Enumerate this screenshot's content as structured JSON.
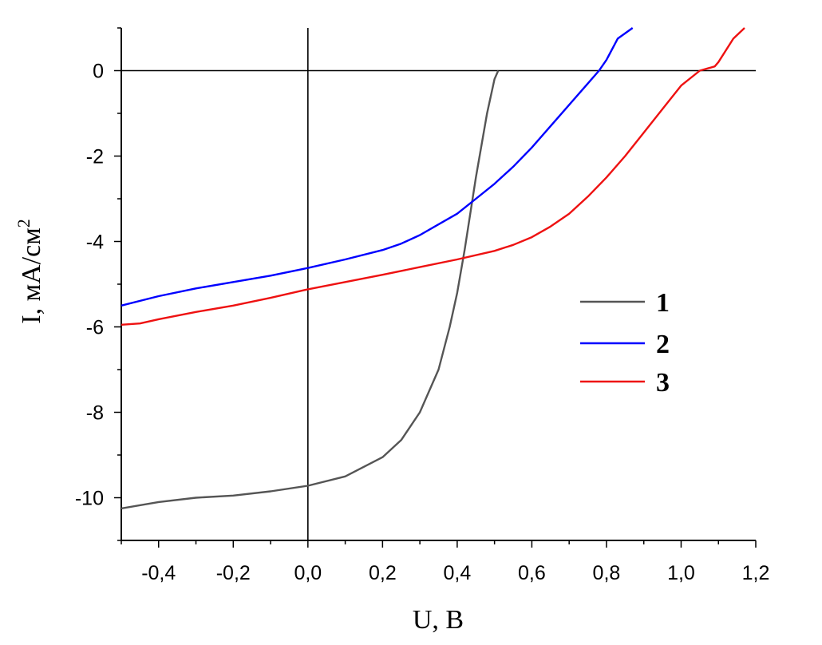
{
  "chart_data": {
    "type": "line",
    "xlabel": "U, В",
    "ylabel_main": "I, мА/см",
    "ylabel_sup": "2",
    "xlim": [
      -0.5,
      1.2
    ],
    "ylim": [
      -11,
      1
    ],
    "xticks": [
      -0.4,
      -0.2,
      0.0,
      0.2,
      0.4,
      0.6,
      0.8,
      1.0,
      1.2
    ],
    "xtick_labels": [
      "-0,4",
      "-0,2",
      "0,0",
      "0,2",
      "0,4",
      "0,6",
      "0,8",
      "1,0",
      "1,2"
    ],
    "yticks": [
      0,
      -2,
      -4,
      -6,
      -8,
      -10
    ],
    "ytick_labels": [
      "0",
      "-2",
      "-4",
      "-6",
      "-8",
      "-10"
    ],
    "grid": false,
    "legend_position": "right",
    "series": [
      {
        "name": "1",
        "color": "#555555",
        "x": [
          -0.5,
          -0.4,
          -0.3,
          -0.2,
          -0.1,
          0.0,
          0.1,
          0.2,
          0.25,
          0.3,
          0.35,
          0.38,
          0.4,
          0.42,
          0.45,
          0.48,
          0.5,
          0.51
        ],
        "y": [
          -10.25,
          -10.1,
          -10.0,
          -9.95,
          -9.85,
          -9.72,
          -9.5,
          -9.05,
          -8.65,
          -8.0,
          -7.0,
          -6.0,
          -5.2,
          -4.2,
          -2.5,
          -1.0,
          -0.2,
          0.0
        ]
      },
      {
        "name": "2",
        "color": "#0000ff",
        "x": [
          -0.5,
          -0.4,
          -0.3,
          -0.2,
          -0.1,
          0.0,
          0.1,
          0.2,
          0.25,
          0.3,
          0.35,
          0.4,
          0.45,
          0.5,
          0.55,
          0.6,
          0.65,
          0.7,
          0.75,
          0.78,
          0.8,
          0.83,
          0.87
        ],
        "y": [
          -5.5,
          -5.28,
          -5.1,
          -4.95,
          -4.8,
          -4.62,
          -4.42,
          -4.2,
          -4.05,
          -3.85,
          -3.6,
          -3.35,
          -3.0,
          -2.65,
          -2.25,
          -1.8,
          -1.3,
          -0.8,
          -0.3,
          0.0,
          0.25,
          0.75,
          1.0
        ]
      },
      {
        "name": "3",
        "color": "#ee1111",
        "x": [
          -0.5,
          -0.45,
          -0.4,
          -0.3,
          -0.2,
          -0.1,
          0.0,
          0.1,
          0.2,
          0.3,
          0.4,
          0.5,
          0.55,
          0.6,
          0.65,
          0.7,
          0.75,
          0.8,
          0.85,
          0.9,
          0.95,
          1.0,
          1.05,
          1.09,
          1.1,
          1.14,
          1.17
        ],
        "y": [
          -5.95,
          -5.92,
          -5.82,
          -5.65,
          -5.5,
          -5.32,
          -5.12,
          -4.95,
          -4.78,
          -4.6,
          -4.42,
          -4.22,
          -4.08,
          -3.9,
          -3.65,
          -3.35,
          -2.95,
          -2.5,
          -2.0,
          -1.45,
          -0.9,
          -0.35,
          0.0,
          0.1,
          0.2,
          0.75,
          1.0
        ]
      }
    ]
  }
}
